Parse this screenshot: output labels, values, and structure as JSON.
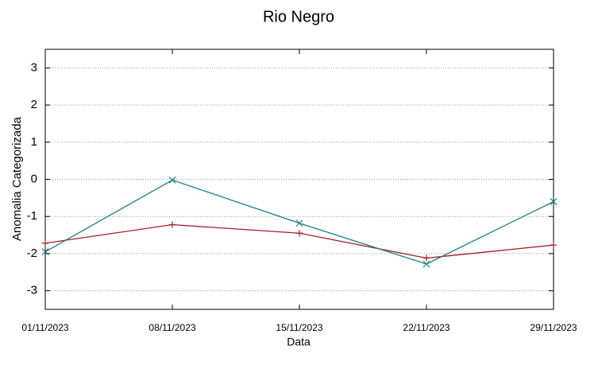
{
  "chart_data": {
    "type": "line",
    "title": "Rio Negro",
    "x_label": "Data",
    "y_label": "Anomalia Categorizada",
    "categories": [
      "01/11/2023",
      "08/11/2023",
      "15/11/2023",
      "22/11/2023",
      "29/11/2023"
    ],
    "series": [
      {
        "color": "#a0202a",
        "marker": "plus",
        "values": [
          -1.72,
          -1.22,
          -1.45,
          -2.12,
          -1.77
        ]
      },
      {
        "color": "#1a7f80",
        "marker": "cross",
        "values": [
          -1.95,
          -0.02,
          -1.18,
          -2.28,
          -0.6
        ]
      }
    ],
    "ylim": [
      -3.5,
      3.5
    ],
    "yticks": [
      -3,
      -2,
      -1,
      0,
      1,
      2,
      3
    ],
    "grid": true
  }
}
